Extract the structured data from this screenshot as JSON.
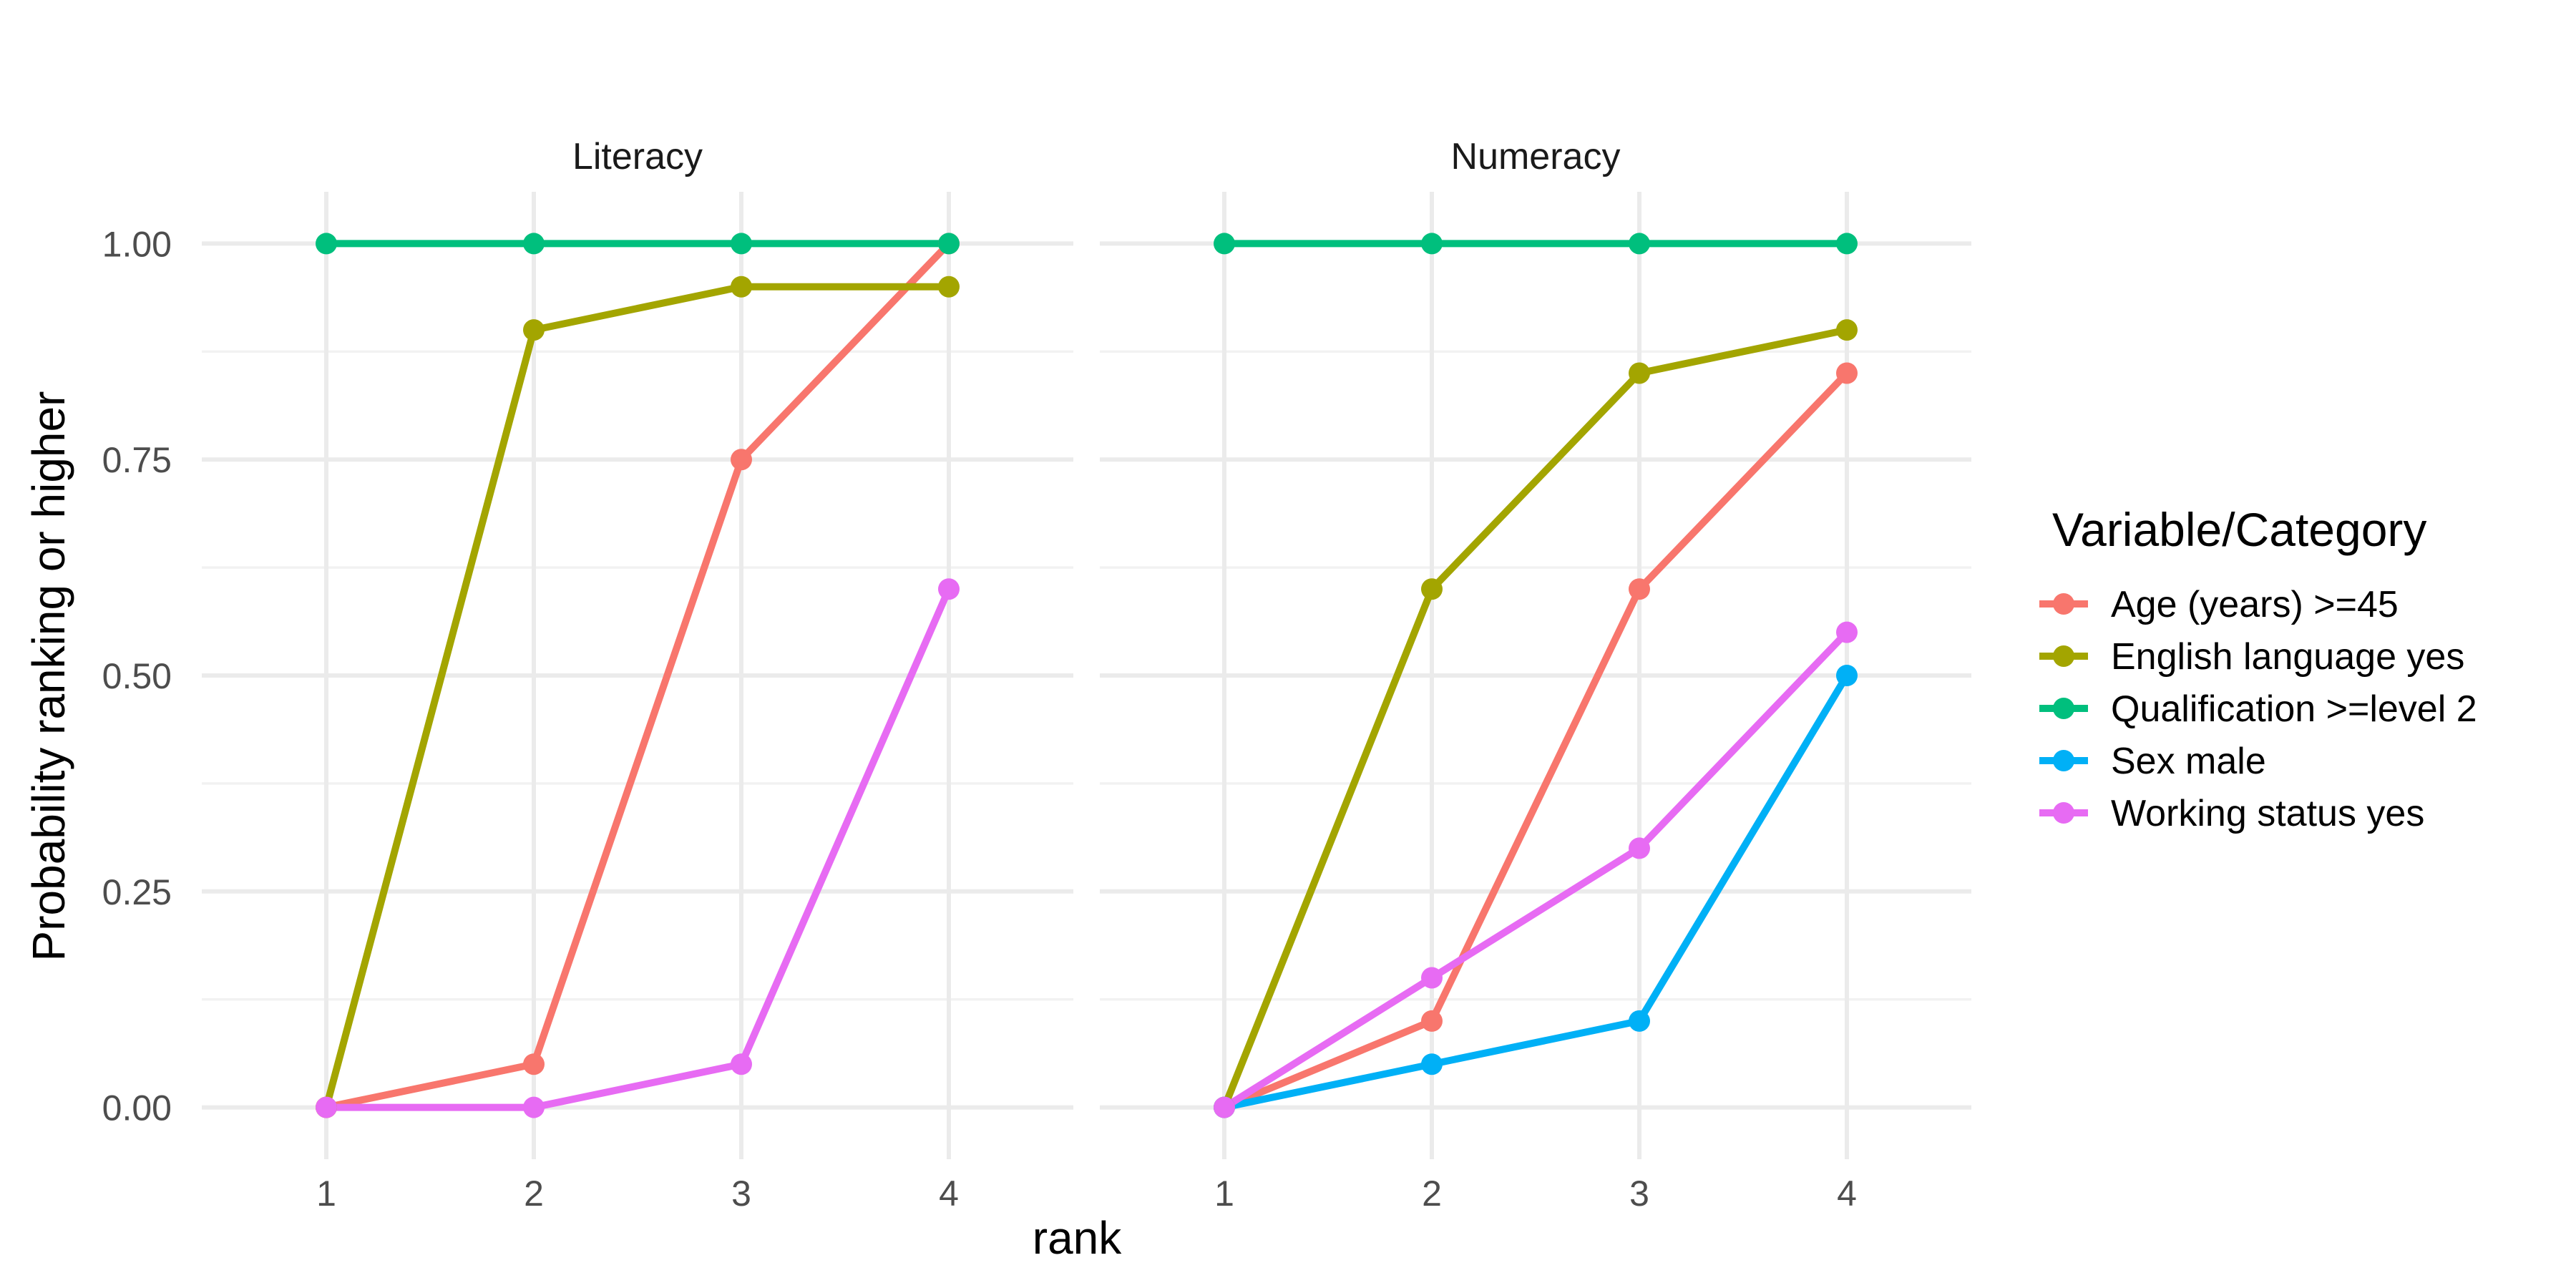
{
  "chart_data": {
    "type": "line",
    "xlabel": "rank",
    "ylabel": "Probability ranking or higher",
    "x": [
      1,
      2,
      3,
      4
    ],
    "ylim": [
      -0.06,
      1.06
    ],
    "xlim": [
      0.4,
      4.6
    ],
    "x_ticks": [
      "1",
      "2",
      "3",
      "4"
    ],
    "y_ticks": [
      "0.00",
      "0.25",
      "0.50",
      "0.75",
      "1.00"
    ],
    "grid": true,
    "legend_position": "right",
    "legend_title": "Variable/Category",
    "series_meta": [
      {
        "name": "Age (years) >=45",
        "color": "#F8766D"
      },
      {
        "name": "English language yes",
        "color": "#A3A500"
      },
      {
        "name": "Qualification >=level 2",
        "color": "#00BF7D"
      },
      {
        "name": "Sex male",
        "color": "#00B0F6"
      },
      {
        "name": "Working status yes",
        "color": "#E76BF3"
      }
    ],
    "panels": [
      {
        "title": "Literacy",
        "series": [
          {
            "name": "Age (years) >=45",
            "values": [
              0,
              0.05,
              0.75,
              1.0
            ]
          },
          {
            "name": "English language yes",
            "values": [
              0,
              0.9,
              0.95,
              0.95
            ]
          },
          {
            "name": "Qualification >=level 2",
            "values": [
              1.0,
              1.0,
              1.0,
              1.0
            ]
          },
          {
            "name": "Working status yes",
            "values": [
              0,
              0,
              0.05,
              0.6
            ]
          }
        ]
      },
      {
        "title": "Numeracy",
        "series": [
          {
            "name": "Age (years) >=45",
            "values": [
              0,
              0.1,
              0.6,
              0.85
            ]
          },
          {
            "name": "English language yes",
            "values": [
              0,
              0.6,
              0.85,
              0.9
            ]
          },
          {
            "name": "Qualification >=level 2",
            "values": [
              1.0,
              1.0,
              1.0,
              1.0
            ]
          },
          {
            "name": "Sex male",
            "values": [
              0,
              0.05,
              0.1,
              0.5
            ]
          },
          {
            "name": "Working status yes",
            "values": [
              0,
              0.15,
              0.3,
              0.55
            ]
          }
        ]
      }
    ]
  }
}
